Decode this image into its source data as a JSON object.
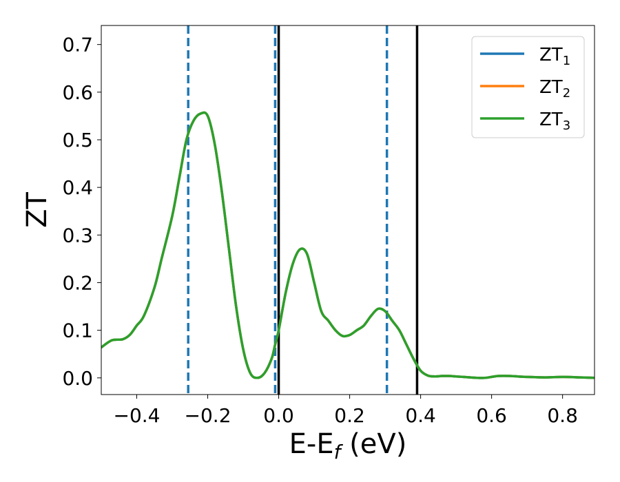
{
  "chart_data": {
    "type": "line",
    "xlabel": "E-E",
    "xlabel_sub": "f",
    "xlabel_unit": " (eV)",
    "ylabel": "ZT",
    "xlim": [
      -0.5,
      0.89
    ],
    "ylim": [
      -0.035,
      0.74
    ],
    "xticks": [
      -0.4,
      -0.2,
      0.0,
      0.2,
      0.4,
      0.6,
      0.8
    ],
    "xtick_labels": [
      "−0.4",
      "−0.2",
      "0.0",
      "0.2",
      "0.4",
      "0.6",
      "0.8"
    ],
    "yticks": [
      0.0,
      0.1,
      0.2,
      0.3,
      0.4,
      0.5,
      0.6,
      0.7
    ],
    "ytick_labels": [
      "0.0",
      "0.1",
      "0.2",
      "0.3",
      "0.4",
      "0.5",
      "0.6",
      "0.7"
    ],
    "grid": false,
    "legend_position": "top-right",
    "x": [
      -0.5,
      -0.47,
      -0.44,
      -0.42,
      -0.4,
      -0.38,
      -0.35,
      -0.33,
      -0.3,
      -0.28,
      -0.26,
      -0.24,
      -0.22,
      -0.2,
      -0.18,
      -0.16,
      -0.14,
      -0.12,
      -0.1,
      -0.08,
      -0.06,
      -0.04,
      -0.02,
      -0.01,
      0.0,
      0.02,
      0.04,
      0.06,
      0.08,
      0.1,
      0.12,
      0.14,
      0.16,
      0.18,
      0.2,
      0.22,
      0.24,
      0.26,
      0.28,
      0.3,
      0.32,
      0.34,
      0.36,
      0.38,
      0.4,
      0.42,
      0.44,
      0.46,
      0.48,
      0.5,
      0.52,
      0.54,
      0.56,
      0.58,
      0.6,
      0.62,
      0.65,
      0.7,
      0.75,
      0.8,
      0.85,
      0.89
    ],
    "series": [
      {
        "name": "ZT",
        "sub": "1",
        "color": "#1f77b4",
        "values": [
          0.064,
          0.079,
          0.081,
          0.09,
          0.11,
          0.13,
          0.19,
          0.25,
          0.34,
          0.42,
          0.5,
          0.54,
          0.555,
          0.55,
          0.49,
          0.39,
          0.27,
          0.15,
          0.06,
          0.01,
          0.0,
          0.01,
          0.04,
          0.07,
          0.1,
          0.18,
          0.24,
          0.27,
          0.26,
          0.2,
          0.14,
          0.12,
          0.1,
          0.088,
          0.09,
          0.1,
          0.11,
          0.13,
          0.145,
          0.14,
          0.12,
          0.1,
          0.07,
          0.04,
          0.015,
          0.005,
          0.003,
          0.004,
          0.004,
          0.003,
          0.002,
          0.001,
          0.0,
          0.0,
          0.002,
          0.004,
          0.004,
          0.002,
          0.001,
          0.002,
          0.001,
          0.0
        ]
      },
      {
        "name": "ZT",
        "sub": "2",
        "color": "#ff7f0e",
        "values": [
          0.064,
          0.079,
          0.081,
          0.09,
          0.11,
          0.13,
          0.19,
          0.25,
          0.34,
          0.42,
          0.5,
          0.54,
          0.555,
          0.55,
          0.49,
          0.39,
          0.27,
          0.15,
          0.06,
          0.01,
          0.0,
          0.01,
          0.04,
          0.07,
          0.1,
          0.18,
          0.24,
          0.27,
          0.26,
          0.2,
          0.14,
          0.12,
          0.1,
          0.088,
          0.09,
          0.1,
          0.11,
          0.13,
          0.145,
          0.14,
          0.12,
          0.1,
          0.07,
          0.04,
          0.015,
          0.005,
          0.003,
          0.004,
          0.004,
          0.003,
          0.002,
          0.001,
          0.0,
          0.0,
          0.002,
          0.004,
          0.004,
          0.002,
          0.001,
          0.002,
          0.001,
          0.0
        ]
      },
      {
        "name": "ZT",
        "sub": "3",
        "color": "#2ca02c",
        "values": [
          0.064,
          0.079,
          0.081,
          0.09,
          0.11,
          0.13,
          0.19,
          0.25,
          0.34,
          0.42,
          0.5,
          0.54,
          0.555,
          0.55,
          0.49,
          0.39,
          0.27,
          0.15,
          0.06,
          0.01,
          0.0,
          0.01,
          0.04,
          0.07,
          0.1,
          0.18,
          0.24,
          0.27,
          0.26,
          0.2,
          0.14,
          0.12,
          0.1,
          0.088,
          0.09,
          0.1,
          0.11,
          0.13,
          0.145,
          0.14,
          0.12,
          0.1,
          0.07,
          0.04,
          0.015,
          0.005,
          0.003,
          0.004,
          0.004,
          0.003,
          0.002,
          0.001,
          0.0,
          0.0,
          0.002,
          0.004,
          0.004,
          0.002,
          0.001,
          0.002,
          0.001,
          0.0
        ]
      }
    ],
    "vlines": [
      {
        "x": -0.255,
        "style": "dashed",
        "color": "#1f77b4"
      },
      {
        "x": -0.01,
        "style": "dashed",
        "color": "#1f77b4"
      },
      {
        "x": 0.305,
        "style": "dashed",
        "color": "#1f77b4"
      },
      {
        "x": 0.0,
        "style": "solid",
        "color": "#000000"
      },
      {
        "x": 0.39,
        "style": "solid",
        "color": "#000000"
      }
    ]
  }
}
